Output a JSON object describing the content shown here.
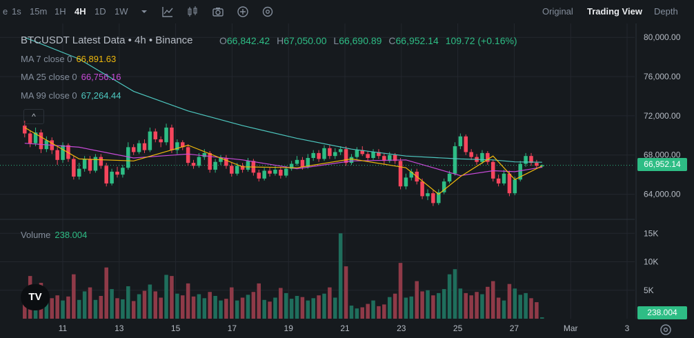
{
  "toolbar": {
    "timeframes": [
      "e",
      "1s",
      "15m",
      "1H",
      "4H",
      "1D",
      "1W"
    ],
    "active_timeframe": "4H",
    "tools": [
      "chevron-down-icon",
      "indicator-chart-icon",
      "candle-type-icon",
      "camera-icon",
      "add-circle-icon",
      "settings-cog-icon"
    ],
    "views": [
      "Original",
      "Trading View",
      "Depth"
    ],
    "active_view": "Trading View"
  },
  "legend": {
    "title": "BTCUSDT Latest Data • 4h • Binance",
    "open_label": "O",
    "open": "66,842.42",
    "high_label": "H",
    "high": "67,050.00",
    "low_label": "L",
    "low": "66,690.89",
    "close_label": "C",
    "close": "66,952.14",
    "change": "109.72 (+0.16%)",
    "ma7_label": "MA 7 close 0",
    "ma7_value": "66,891.63",
    "ma25_label": "MA 25 close 0",
    "ma25_value": "66,756.16",
    "ma99_label": "MA 99 close 0",
    "ma99_value": "67,264.44",
    "volume_label": "Volume",
    "volume_value": "238.004",
    "collapse_symbol": "^"
  },
  "price_axis": {
    "ticks": [
      "80,000.00",
      "76,000.00",
      "72,000.00",
      "68,000.00",
      "64,000.00"
    ],
    "current_price": "66,952.14"
  },
  "volume_axis": {
    "ticks": [
      "15K",
      "10K",
      "5K"
    ],
    "current_volume": "238.004"
  },
  "time_axis": {
    "ticks": [
      "11",
      "13",
      "15",
      "17",
      "19",
      "21",
      "23",
      "25",
      "27",
      "Mar",
      "3"
    ]
  },
  "logo_text": "TV",
  "colors": {
    "background": "#161a1e",
    "up": "#2ebd85",
    "down": "#f6465d",
    "up_volume": "#1f6e5c",
    "down_volume": "#8f3a48",
    "ma7": "#f0b90b",
    "ma25": "#c84ad8",
    "ma99": "#4ec9c1",
    "grid": "#23272e"
  },
  "chart_data": {
    "type": "candlestick",
    "price_range": [
      62000,
      81000
    ],
    "volume_range": [
      0,
      16000
    ],
    "points": [
      [
        20,
        71000,
        70200,
        71500,
        69800,
        4200
      ],
      [
        21,
        70200,
        69200,
        70500,
        68800,
        7500
      ],
      [
        22,
        69200,
        70300,
        70800,
        68900,
        5200
      ],
      [
        23,
        70300,
        68600,
        70600,
        68200,
        6300
      ],
      [
        24,
        68600,
        69500,
        69900,
        68300,
        3700
      ],
      [
        25,
        69500,
        68500,
        69800,
        68100,
        3600
      ],
      [
        26,
        68500,
        67500,
        68800,
        67000,
        4100
      ],
      [
        27,
        67500,
        69000,
        69300,
        67200,
        3200
      ],
      [
        28,
        69000,
        67600,
        69200,
        67300,
        3900
      ],
      [
        29,
        67600,
        65800,
        67900,
        65500,
        7800
      ],
      [
        30,
        65800,
        66600,
        67200,
        65500,
        3300
      ],
      [
        31,
        66600,
        67600,
        67900,
        66300,
        4800
      ],
      [
        32,
        67600,
        66400,
        67900,
        66100,
        5500
      ],
      [
        33,
        66400,
        67800,
        68100,
        66200,
        3300
      ],
      [
        34,
        67800,
        66900,
        68100,
        66600,
        4000
      ],
      [
        35,
        66900,
        65100,
        67200,
        64800,
        9000
      ],
      [
        36,
        65100,
        66300,
        66600,
        64900,
        5200
      ],
      [
        37,
        66300,
        66000,
        66800,
        65700,
        3600
      ],
      [
        38,
        66000,
        66700,
        67000,
        65700,
        3400
      ],
      [
        39,
        66700,
        68800,
        69300,
        66500,
        5700
      ],
      [
        40,
        68800,
        68300,
        69100,
        68000,
        3100
      ],
      [
        41,
        68300,
        69200,
        69500,
        68100,
        4300
      ],
      [
        42,
        69200,
        68500,
        69600,
        68200,
        4900
      ],
      [
        43,
        68500,
        70400,
        70800,
        68300,
        6000
      ],
      [
        44,
        70400,
        69600,
        70700,
        69300,
        4800
      ],
      [
        45,
        69600,
        69300,
        69900,
        68800,
        3700
      ],
      [
        46,
        69300,
        70800,
        71200,
        69000,
        7700
      ],
      [
        47,
        70800,
        68500,
        71100,
        68200,
        7500
      ],
      [
        48,
        68500,
        69300,
        69600,
        68100,
        4400
      ],
      [
        49,
        69300,
        68800,
        69500,
        68500,
        4100
      ],
      [
        50,
        68800,
        67200,
        69100,
        66900,
        6200
      ],
      [
        51,
        67200,
        66900,
        67500,
        66600,
        3900
      ],
      [
        52,
        66900,
        67800,
        68200,
        66700,
        4300
      ],
      [
        53,
        67800,
        68200,
        68600,
        67500,
        3600
      ],
      [
        54,
        68200,
        66500,
        68400,
        66200,
        4700
      ],
      [
        55,
        66500,
        67300,
        67600,
        66200,
        4000
      ],
      [
        56,
        67300,
        67700,
        68000,
        67000,
        3200
      ],
      [
        57,
        67700,
        66900,
        68000,
        66600,
        3500
      ],
      [
        58,
        66900,
        66100,
        67200,
        65800,
        5500
      ],
      [
        59,
        66100,
        66900,
        67200,
        65900,
        3200
      ],
      [
        60,
        66900,
        66500,
        67200,
        66200,
        3700
      ],
      [
        61,
        66500,
        67400,
        67700,
        66300,
        4200
      ],
      [
        62,
        67400,
        66200,
        67600,
        65900,
        4700
      ],
      [
        63,
        66200,
        65600,
        66500,
        65300,
        6200
      ],
      [
        64,
        65600,
        66400,
        66700,
        65400,
        3300
      ],
      [
        65,
        66400,
        66100,
        66700,
        65800,
        3000
      ],
      [
        66,
        66100,
        66500,
        66900,
        65900,
        3700
      ],
      [
        67,
        66500,
        65900,
        66800,
        65600,
        5400
      ],
      [
        68,
        65900,
        66600,
        66900,
        65700,
        4500
      ],
      [
        69,
        66600,
        67100,
        67400,
        66400,
        3500
      ],
      [
        70,
        67100,
        67500,
        67900,
        66900,
        4000
      ],
      [
        71,
        67500,
        66800,
        67800,
        66500,
        3800
      ],
      [
        72,
        66800,
        67700,
        68100,
        66600,
        3200
      ],
      [
        73,
        67700,
        68200,
        68500,
        67400,
        3600
      ],
      [
        74,
        68200,
        67600,
        68500,
        67300,
        4100
      ],
      [
        75,
        67600,
        68700,
        69000,
        67400,
        4400
      ],
      [
        76,
        68700,
        67900,
        69000,
        67600,
        5500
      ],
      [
        77,
        67900,
        68300,
        68700,
        67600,
        3700
      ],
      [
        78,
        68300,
        68600,
        68900,
        68000,
        15000
      ],
      [
        79,
        68600,
        67200,
        68900,
        66900,
        9200
      ],
      [
        80,
        67200,
        67800,
        68100,
        67000,
        2300
      ],
      [
        81,
        67800,
        68500,
        68800,
        67600,
        1800
      ],
      [
        82,
        68500,
        68100,
        68900,
        67900,
        2000
      ],
      [
        83,
        68100,
        67700,
        68400,
        67400,
        2600
      ],
      [
        84,
        67700,
        68300,
        68600,
        67500,
        3200
      ],
      [
        85,
        68300,
        67900,
        68600,
        67600,
        2200
      ],
      [
        86,
        67900,
        67400,
        68200,
        67100,
        2500
      ],
      [
        87,
        67400,
        68000,
        68300,
        67200,
        3800
      ],
      [
        88,
        68000,
        67400,
        68200,
        67100,
        4400
      ],
      [
        89,
        67400,
        64800,
        67700,
        64500,
        9800
      ],
      [
        90,
        64800,
        65700,
        66100,
        64500,
        3700
      ],
      [
        91,
        65700,
        66300,
        66600,
        65400,
        3900
      ],
      [
        92,
        66300,
        65300,
        66600,
        65000,
        6600
      ],
      [
        93,
        65300,
        63800,
        65600,
        63500,
        4800
      ],
      [
        94,
        63800,
        64100,
        64500,
        63400,
        5000
      ],
      [
        95,
        64100,
        63100,
        64400,
        62800,
        4100
      ],
      [
        96,
        63100,
        64200,
        64500,
        62900,
        4500
      ],
      [
        97,
        64200,
        65300,
        65600,
        64000,
        5200
      ],
      [
        98,
        65300,
        66100,
        66400,
        65100,
        7800
      ],
      [
        99,
        66100,
        68900,
        69300,
        65900,
        8700
      ],
      [
        100,
        68900,
        69900,
        70200,
        68600,
        5300
      ],
      [
        101,
        69900,
        68300,
        70100,
        68000,
        4500
      ],
      [
        102,
        68300,
        67800,
        68600,
        67500,
        4100
      ],
      [
        103,
        67800,
        67300,
        68100,
        67000,
        4700
      ],
      [
        104,
        67300,
        68200,
        68500,
        67100,
        4300
      ],
      [
        105,
        68200,
        67300,
        68400,
        67000,
        5600
      ],
      [
        106,
        67300,
        65600,
        67500,
        65300,
        6600
      ],
      [
        107,
        65600,
        65100,
        66000,
        64800,
        3700
      ],
      [
        108,
        65100,
        66100,
        66500,
        64900,
        3200
      ],
      [
        109,
        66100,
        64100,
        66400,
        63800,
        6100
      ],
      [
        110,
        64100,
        65500,
        65800,
        63900,
        5300
      ],
      [
        111,
        65500,
        67100,
        67400,
        65300,
        4200
      ],
      [
        112,
        67100,
        67900,
        68200,
        66800,
        4500
      ],
      [
        113,
        67900,
        67200,
        68200,
        66900,
        3600
      ],
      [
        114,
        67200,
        66900,
        67500,
        66600,
        2900
      ],
      [
        115,
        66842.42,
        66952.14,
        67050,
        66690.89,
        238
      ]
    ],
    "ma7": [
      [
        20,
        70800
      ],
      [
        30,
        67600
      ],
      [
        40,
        67400
      ],
      [
        50,
        69000
      ],
      [
        60,
        66800
      ],
      [
        70,
        66700
      ],
      [
        80,
        67600
      ],
      [
        90,
        66700
      ],
      [
        96,
        64000
      ],
      [
        100,
        65800
      ],
      [
        106,
        67900
      ],
      [
        110,
        65500
      ],
      [
        115,
        66891.63
      ]
    ],
    "ma25": [
      [
        20,
        69200
      ],
      [
        30,
        68800
      ],
      [
        40,
        67700
      ],
      [
        50,
        68100
      ],
      [
        60,
        67500
      ],
      [
        70,
        66600
      ],
      [
        80,
        67400
      ],
      [
        90,
        67500
      ],
      [
        100,
        65900
      ],
      [
        106,
        66400
      ],
      [
        110,
        66300
      ],
      [
        115,
        66756.16
      ]
    ],
    "ma99": [
      [
        20,
        80000
      ],
      [
        30,
        77800
      ],
      [
        40,
        74500
      ],
      [
        50,
        72500
      ],
      [
        60,
        71000
      ],
      [
        70,
        69700
      ],
      [
        80,
        68600
      ],
      [
        90,
        67900
      ],
      [
        100,
        67600
      ],
      [
        106,
        67500
      ],
      [
        110,
        67300
      ],
      [
        115,
        67264.44
      ]
    ]
  }
}
